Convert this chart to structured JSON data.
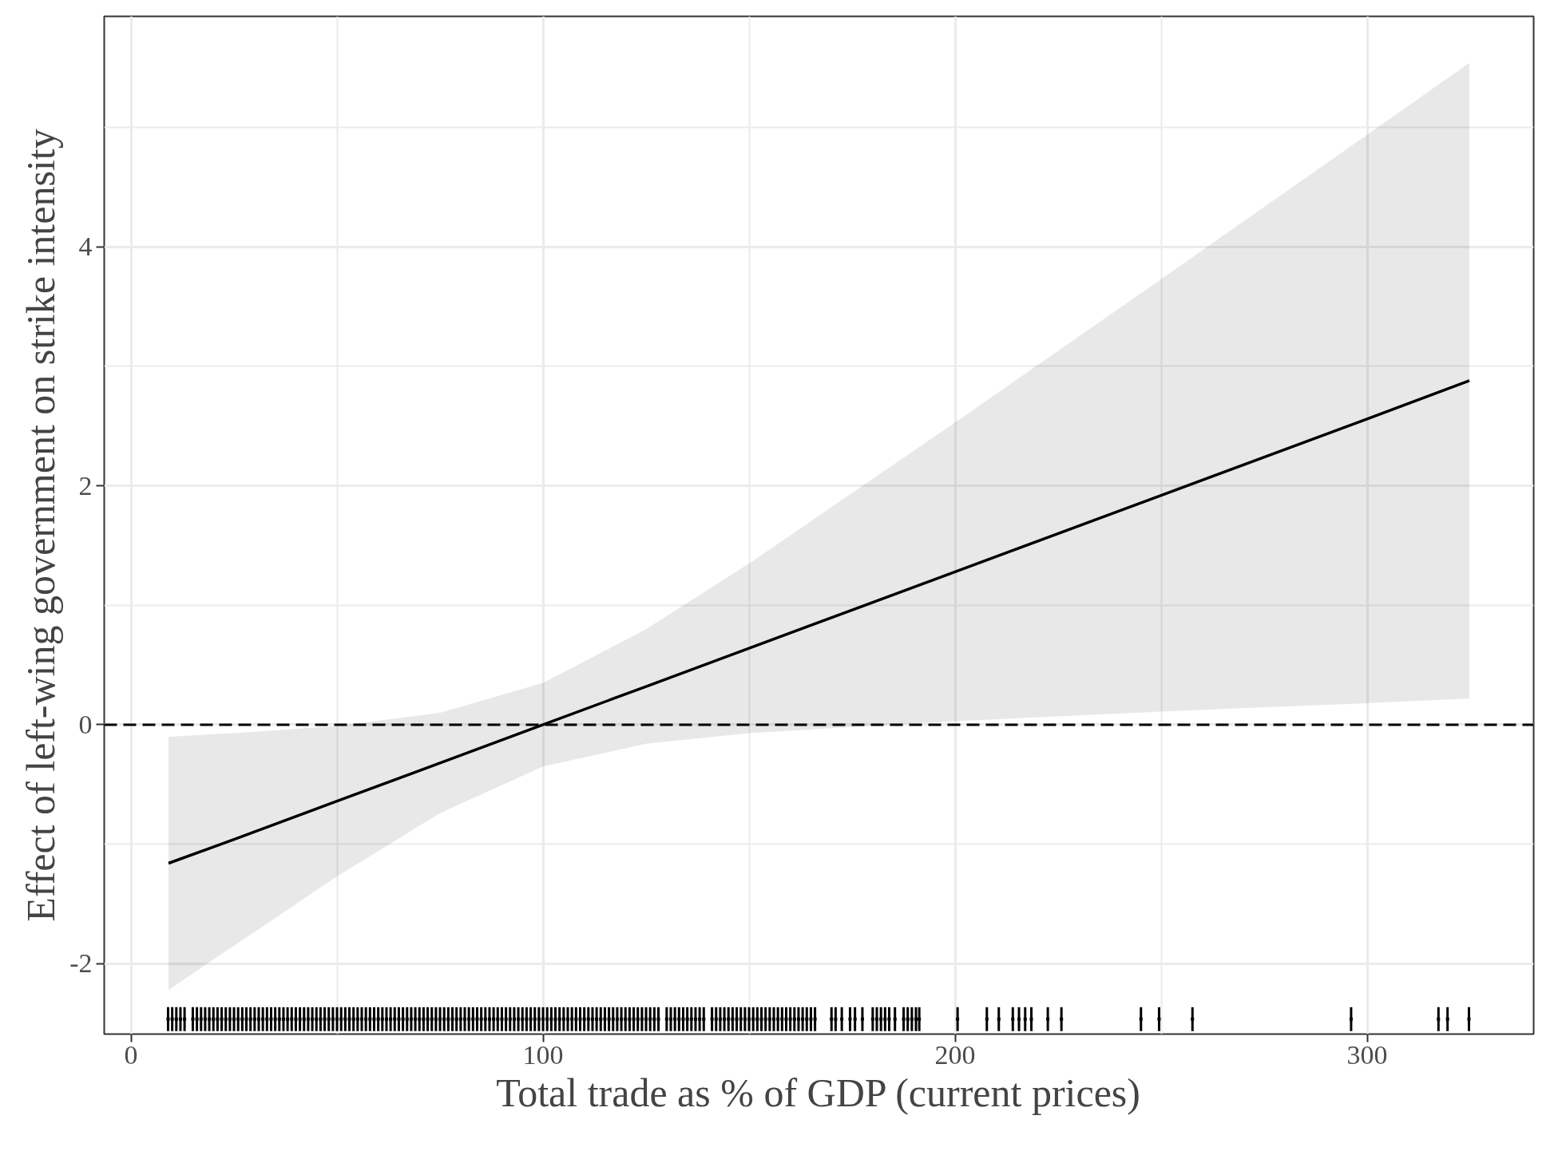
{
  "chart_data": {
    "type": "line",
    "xlabel": "Total trade as % of GDP (current prices)",
    "ylabel": "Effect of left-wing government on strike intensity",
    "xlim": [
      -6.5,
      340.4
    ],
    "ylim": [
      -2.59,
      5.93
    ],
    "xticks": [
      0,
      100,
      200,
      300
    ],
    "yticks": [
      -2,
      0,
      2,
      4
    ],
    "grid": true,
    "ref_lines": [
      {
        "axis": "y",
        "value": 0,
        "label": null,
        "color": "#000000",
        "line_style": "dashed"
      }
    ],
    "series": [
      {
        "color": "#000000",
        "x": [
          9.1,
          25,
          50,
          75,
          100,
          125,
          150,
          200,
          250,
          300,
          324.8
        ],
        "values": [
          -1.16,
          -0.96,
          -0.64,
          -0.32,
          0.0,
          0.32,
          0.64,
          1.28,
          1.92,
          2.56,
          2.88
        ],
        "lower": [
          -2.22,
          -1.85,
          -1.27,
          -0.74,
          -0.35,
          -0.16,
          -0.07,
          0.03,
          0.11,
          0.18,
          0.22
        ],
        "upper": [
          -0.1,
          -0.07,
          -0.01,
          0.1,
          0.35,
          0.8,
          1.35,
          2.53,
          3.73,
          4.94,
          5.54
        ]
      },
      {
        "type": "scatter",
        "color": "#000000",
        "x": [
          9,
          10,
          11,
          12,
          13,
          15,
          16,
          17,
          18,
          19,
          20,
          21,
          22,
          23,
          24,
          25,
          26,
          27,
          28,
          29,
          30,
          31,
          32,
          33,
          34,
          35,
          36,
          37,
          38,
          39,
          40,
          41,
          42,
          43,
          44,
          45,
          46,
          47,
          48,
          49,
          50,
          51,
          52,
          53,
          54,
          55,
          56,
          57,
          58,
          59,
          60,
          61,
          62,
          63,
          64,
          65,
          66,
          67,
          68,
          69,
          70,
          71,
          72,
          73,
          74,
          75,
          76,
          77,
          78,
          79,
          80,
          81,
          82,
          83,
          84,
          85,
          86,
          87,
          88,
          89,
          90,
          91,
          92,
          93,
          94,
          95,
          96,
          97,
          98,
          99,
          100,
          101,
          102,
          103,
          104,
          105,
          106,
          107,
          108,
          109,
          110,
          111,
          112,
          113,
          114,
          115,
          116,
          117,
          118,
          119,
          120,
          121,
          122,
          123,
          124,
          125,
          126,
          127,
          128,
          130,
          131,
          132,
          133,
          134,
          135,
          136,
          137,
          138,
          139,
          141,
          142,
          143,
          144,
          145,
          146,
          147,
          148,
          149,
          150,
          151,
          152,
          153,
          154,
          155,
          156,
          157,
          158,
          159,
          160,
          161,
          162,
          163,
          164,
          165,
          166,
          170,
          171,
          172.5,
          174.5,
          175.7,
          177.5,
          180,
          181,
          182,
          183,
          184,
          185.4,
          187.5,
          188.5,
          189.5,
          190.5,
          191.3,
          200.6,
          207.7,
          210.6,
          214,
          215.5,
          217,
          218.5,
          222.5,
          225.8,
          245.1,
          249.5,
          257.6,
          296.1,
          317.3,
          319.5,
          324.7
        ],
        "marker": "square",
        "errors": [
          0.1,
          0.1,
          0.1,
          0.1,
          0.1,
          0.1,
          0.1,
          0.1,
          0.1,
          0.1,
          0.1,
          0.1,
          0.1,
          0.1,
          0.1,
          0.1,
          0.1,
          0.1,
          0.1,
          0.1,
          0.1,
          0.1,
          0.1,
          0.1,
          0.1,
          0.1,
          0.1,
          0.1,
          0.1,
          0.1,
          0.1,
          0.1,
          0.1,
          0.1,
          0.1,
          0.1,
          0.1,
          0.1,
          0.1,
          0.1,
          0.1,
          0.1,
          0.1,
          0.1,
          0.1,
          0.1,
          0.1,
          0.1,
          0.1,
          0.1,
          0.1,
          0.1,
          0.1,
          0.1,
          0.1,
          0.1,
          0.1,
          0.1,
          0.1,
          0.1,
          0.1,
          0.1,
          0.1,
          0.1,
          0.1,
          0.1,
          0.1,
          0.1,
          0.1,
          0.1,
          0.1,
          0.1,
          0.1,
          0.1,
          0.1,
          0.1,
          0.1,
          0.1,
          0.1,
          0.1,
          0.1,
          0.1,
          0.1,
          0.1,
          0.1,
          0.1,
          0.1,
          0.1,
          0.1,
          0.1,
          0.1,
          0.1,
          0.1,
          0.1,
          0.1,
          0.1,
          0.1,
          0.1,
          0.1,
          0.1,
          0.1,
          0.1,
          0.1,
          0.1,
          0.1,
          0.1,
          0.1,
          0.1,
          0.1,
          0.1,
          0.1,
          0.1,
          0.1,
          0.1,
          0.1,
          0.1,
          0.1,
          0.1,
          0.1,
          0.1,
          0.1,
          0.1,
          0.1,
          0.1,
          0.1,
          0.1,
          0.1,
          0.1,
          0.1,
          0.1,
          0.1,
          0.1,
          0.1,
          0.1,
          0.1,
          0.1,
          0.1,
          0.1,
          0.1,
          0.1,
          0.1,
          0.1,
          0.1,
          0.1,
          0.1,
          0.1,
          0.1,
          0.1,
          0.1,
          0.1,
          0.1,
          0.1,
          0.1,
          0.1,
          0.1,
          0.1,
          0.1,
          0.1,
          0.1,
          0.1,
          0.1,
          0.1,
          0.1,
          0.1,
          0.1,
          0.1,
          0.1,
          0.1,
          0.1,
          0.1,
          0.1,
          0.1,
          0.1,
          0.1,
          0.1,
          0.1,
          0.1,
          0.1,
          0.1,
          0.1,
          0.1,
          0.1,
          0.1,
          0.1,
          0.1,
          0.1,
          0.1,
          0.1
        ],
        "values": [
          -2.465,
          -2.465,
          -2.465,
          -2.465,
          -2.465,
          -2.465,
          -2.465,
          -2.465,
          -2.465,
          -2.465,
          -2.465,
          -2.465,
          -2.465,
          -2.465,
          -2.465,
          -2.465,
          -2.465,
          -2.465,
          -2.465,
          -2.465,
          -2.465,
          -2.465,
          -2.465,
          -2.465,
          -2.465,
          -2.465,
          -2.465,
          -2.465,
          -2.465,
          -2.465,
          -2.465,
          -2.465,
          -2.465,
          -2.465,
          -2.465,
          -2.465,
          -2.465,
          -2.465,
          -2.465,
          -2.465,
          -2.465,
          -2.465,
          -2.465,
          -2.465,
          -2.465,
          -2.465,
          -2.465,
          -2.465,
          -2.465,
          -2.465,
          -2.465,
          -2.465,
          -2.465,
          -2.465,
          -2.465,
          -2.465,
          -2.465,
          -2.465,
          -2.465,
          -2.465,
          -2.465,
          -2.465,
          -2.465,
          -2.465,
          -2.465,
          -2.465,
          -2.465,
          -2.465,
          -2.465,
          -2.465,
          -2.465,
          -2.465,
          -2.465,
          -2.465,
          -2.465,
          -2.465,
          -2.465,
          -2.465,
          -2.465,
          -2.465,
          -2.465,
          -2.465,
          -2.465,
          -2.465,
          -2.465,
          -2.465,
          -2.465,
          -2.465,
          -2.465,
          -2.465,
          -2.465,
          -2.465,
          -2.465,
          -2.465,
          -2.465,
          -2.465,
          -2.465,
          -2.465,
          -2.465,
          -2.465,
          -2.465,
          -2.465,
          -2.465,
          -2.465,
          -2.465,
          -2.465,
          -2.465,
          -2.465,
          -2.465,
          -2.465,
          -2.465,
          -2.465,
          -2.465,
          -2.465,
          -2.465,
          -2.465,
          -2.465,
          -2.465,
          -2.465,
          -2.465,
          -2.465,
          -2.465,
          -2.465,
          -2.465,
          -2.465,
          -2.465,
          -2.465,
          -2.465,
          -2.465,
          -2.465,
          -2.465,
          -2.465,
          -2.465,
          -2.465,
          -2.465,
          -2.465,
          -2.465,
          -2.465,
          -2.465,
          -2.465,
          -2.465,
          -2.465,
          -2.465,
          -2.465,
          -2.465,
          -2.465,
          -2.465,
          -2.465,
          -2.465,
          -2.465,
          -2.465,
          -2.465,
          -2.465,
          -2.465,
          -2.465,
          -2.465,
          -2.465,
          -2.465,
          -2.465,
          -2.465,
          -2.465,
          -2.465,
          -2.465,
          -2.465,
          -2.465,
          -2.465,
          -2.465,
          -2.465,
          -2.465,
          -2.465,
          -2.465,
          -2.465,
          -2.465,
          -2.465,
          -2.465,
          -2.465,
          -2.465,
          -2.465,
          -2.465,
          -2.465,
          -2.465,
          -2.465,
          -2.465,
          -2.465,
          -2.465,
          -2.465,
          -2.465,
          -2.465
        ]
      }
    ]
  }
}
